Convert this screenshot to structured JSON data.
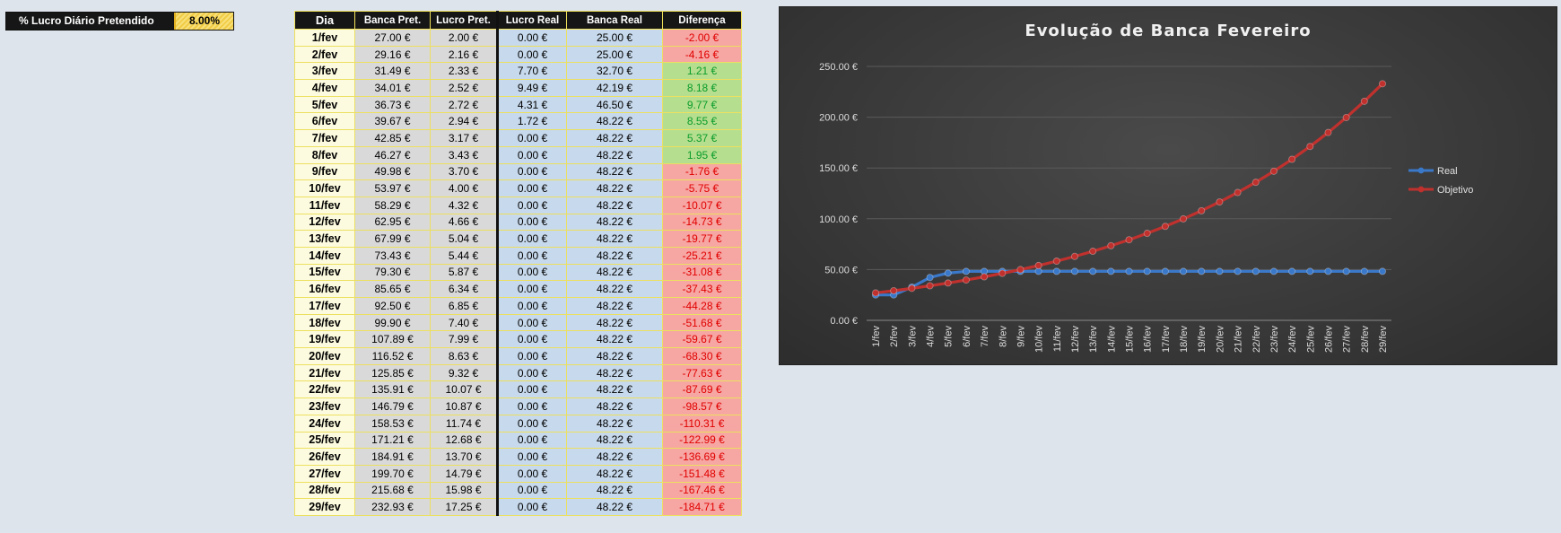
{
  "param": {
    "label": "% Lucro Diário Pretendido",
    "value": "8.00%"
  },
  "table": {
    "headers": [
      "Dia",
      "Banca Pret.",
      "Lucro Pret.",
      "Lucro Real",
      "Banca Real",
      "Diferença"
    ],
    "rows": [
      [
        "1/fev",
        "27.00 €",
        "2.00 €",
        "0.00 €",
        "25.00 €",
        "-2.00 €"
      ],
      [
        "2/fev",
        "29.16 €",
        "2.16 €",
        "0.00 €",
        "25.00 €",
        "-4.16 €"
      ],
      [
        "3/fev",
        "31.49 €",
        "2.33 €",
        "7.70 €",
        "32.70 €",
        "1.21 €"
      ],
      [
        "4/fev",
        "34.01 €",
        "2.52 €",
        "9.49 €",
        "42.19 €",
        "8.18 €"
      ],
      [
        "5/fev",
        "36.73 €",
        "2.72 €",
        "4.31 €",
        "46.50 €",
        "9.77 €"
      ],
      [
        "6/fev",
        "39.67 €",
        "2.94 €",
        "1.72 €",
        "48.22 €",
        "8.55 €"
      ],
      [
        "7/fev",
        "42.85 €",
        "3.17 €",
        "0.00 €",
        "48.22 €",
        "5.37 €"
      ],
      [
        "8/fev",
        "46.27 €",
        "3.43 €",
        "0.00 €",
        "48.22 €",
        "1.95 €"
      ],
      [
        "9/fev",
        "49.98 €",
        "3.70 €",
        "0.00 €",
        "48.22 €",
        "-1.76 €"
      ],
      [
        "10/fev",
        "53.97 €",
        "4.00 €",
        "0.00 €",
        "48.22 €",
        "-5.75 €"
      ],
      [
        "11/fev",
        "58.29 €",
        "4.32 €",
        "0.00 €",
        "48.22 €",
        "-10.07 €"
      ],
      [
        "12/fev",
        "62.95 €",
        "4.66 €",
        "0.00 €",
        "48.22 €",
        "-14.73 €"
      ],
      [
        "13/fev",
        "67.99 €",
        "5.04 €",
        "0.00 €",
        "48.22 €",
        "-19.77 €"
      ],
      [
        "14/fev",
        "73.43 €",
        "5.44 €",
        "0.00 €",
        "48.22 €",
        "-25.21 €"
      ],
      [
        "15/fev",
        "79.30 €",
        "5.87 €",
        "0.00 €",
        "48.22 €",
        "-31.08 €"
      ],
      [
        "16/fev",
        "85.65 €",
        "6.34 €",
        "0.00 €",
        "48.22 €",
        "-37.43 €"
      ],
      [
        "17/fev",
        "92.50 €",
        "6.85 €",
        "0.00 €",
        "48.22 €",
        "-44.28 €"
      ],
      [
        "18/fev",
        "99.90 €",
        "7.40 €",
        "0.00 €",
        "48.22 €",
        "-51.68 €"
      ],
      [
        "19/fev",
        "107.89 €",
        "7.99 €",
        "0.00 €",
        "48.22 €",
        "-59.67 €"
      ],
      [
        "20/fev",
        "116.52 €",
        "8.63 €",
        "0.00 €",
        "48.22 €",
        "-68.30 €"
      ],
      [
        "21/fev",
        "125.85 €",
        "9.32 €",
        "0.00 €",
        "48.22 €",
        "-77.63 €"
      ],
      [
        "22/fev",
        "135.91 €",
        "10.07 €",
        "0.00 €",
        "48.22 €",
        "-87.69 €"
      ],
      [
        "23/fev",
        "146.79 €",
        "10.87 €",
        "0.00 €",
        "48.22 €",
        "-98.57 €"
      ],
      [
        "24/fev",
        "158.53 €",
        "11.74 €",
        "0.00 €",
        "48.22 €",
        "-110.31 €"
      ],
      [
        "25/fev",
        "171.21 €",
        "12.68 €",
        "0.00 €",
        "48.22 €",
        "-122.99 €"
      ],
      [
        "26/fev",
        "184.91 €",
        "13.70 €",
        "0.00 €",
        "48.22 €",
        "-136.69 €"
      ],
      [
        "27/fev",
        "199.70 €",
        "14.79 €",
        "0.00 €",
        "48.22 €",
        "-151.48 €"
      ],
      [
        "28/fev",
        "215.68 €",
        "15.98 €",
        "0.00 €",
        "48.22 €",
        "-167.46 €"
      ],
      [
        "29/fev",
        "232.93 €",
        "17.25 €",
        "0.00 €",
        "48.22 €",
        "-184.71 €"
      ]
    ]
  },
  "colors": {
    "real": "#3a78c9",
    "objetivo": "#c0312e",
    "positive_text": "#0a9d2b",
    "negative_text": "#e00000"
  },
  "chart_data": {
    "type": "line",
    "title": "Evolução de Banca Fevereiro",
    "xlabel": "",
    "ylabel": "",
    "categories": [
      "1/fev",
      "2/fev",
      "3/fev",
      "4/fev",
      "5/fev",
      "6/fev",
      "7/fev",
      "8/fev",
      "9/fev",
      "10/fev",
      "11/fev",
      "12/fev",
      "13/fev",
      "14/fev",
      "15/fev",
      "16/fev",
      "17/fev",
      "18/fev",
      "19/fev",
      "20/fev",
      "21/fev",
      "22/fev",
      "23/fev",
      "24/fev",
      "25/fev",
      "26/fev",
      "27/fev",
      "28/fev",
      "29/fev"
    ],
    "series": [
      {
        "name": "Real",
        "values": [
          25.0,
          25.0,
          32.7,
          42.19,
          46.5,
          48.22,
          48.22,
          48.22,
          48.22,
          48.22,
          48.22,
          48.22,
          48.22,
          48.22,
          48.22,
          48.22,
          48.22,
          48.22,
          48.22,
          48.22,
          48.22,
          48.22,
          48.22,
          48.22,
          48.22,
          48.22,
          48.22,
          48.22,
          48.22
        ]
      },
      {
        "name": "Objetivo",
        "values": [
          27.0,
          29.16,
          31.49,
          34.01,
          36.73,
          39.67,
          42.85,
          46.27,
          49.98,
          53.97,
          58.29,
          62.95,
          67.99,
          73.43,
          79.3,
          85.65,
          92.5,
          99.9,
          107.89,
          116.52,
          125.85,
          135.91,
          146.79,
          158.53,
          171.21,
          184.91,
          199.7,
          215.68,
          232.93
        ]
      }
    ],
    "ylim": [
      0,
      250
    ],
    "yticks": [
      "0.00 €",
      "50.00 €",
      "100.00 €",
      "150.00 €",
      "200.00 €",
      "250.00 €"
    ],
    "grid": true,
    "legend_position": "right"
  }
}
